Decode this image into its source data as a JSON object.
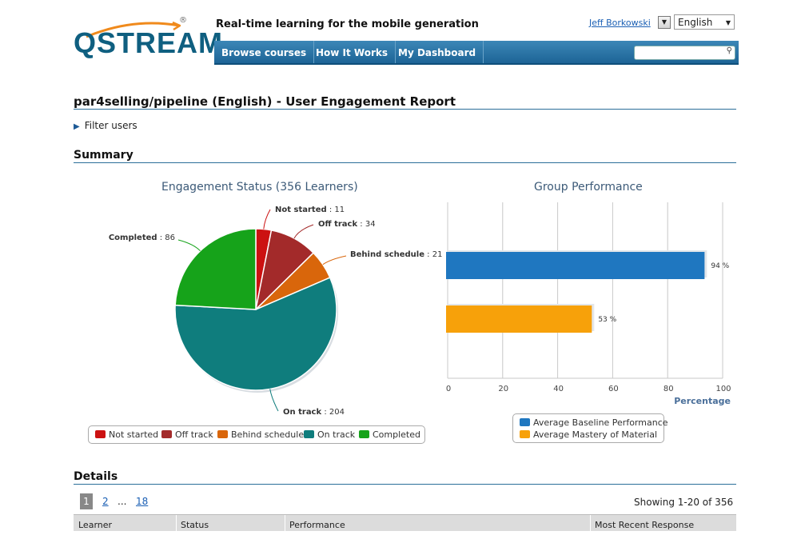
{
  "brand": {
    "logo_text": "QSTREAM",
    "registered": "®",
    "tagline": "Real-time learning for the mobile generation"
  },
  "header": {
    "user_name": "Jeff Borkowski",
    "language": "English"
  },
  "nav": {
    "items": [
      "Browse courses",
      "How It Works",
      "My Dashboard"
    ],
    "search_value": ""
  },
  "page": {
    "title": "par4selling/pipeline (English) - User Engagement Report",
    "filter_label": "Filter users"
  },
  "summary": {
    "heading": "Summary"
  },
  "colors": {
    "not_started": "#cc1111",
    "off_track": "#a32a2a",
    "behind_schedule": "#d9660b",
    "on_track": "#0f7d7d",
    "completed": "#16a31a",
    "baseline": "#1f77c0",
    "mastery": "#f7a10a",
    "accent": "#1d6496"
  },
  "chart_data": [
    {
      "type": "pie",
      "title": "Engagement Status (356 Learners)",
      "slices": [
        {
          "label": "Not started",
          "value": 11
        },
        {
          "label": "Off track",
          "value": 34
        },
        {
          "label": "Behind schedule",
          "value": 21
        },
        {
          "label": "On track",
          "value": 204
        },
        {
          "label": "Completed",
          "value": 86
        }
      ],
      "legend": [
        "Not started",
        "Off track",
        "Behind schedule",
        "On track",
        "Completed"
      ],
      "legend_position": "bottom"
    },
    {
      "type": "bar",
      "orientation": "horizontal",
      "title": "Group Performance",
      "categories": [
        "Average Baseline Performance",
        "Average Mastery of Material"
      ],
      "values": [
        94,
        53
      ],
      "value_suffix": " %",
      "xlabel": "Percentage",
      "xlim": [
        0,
        100
      ],
      "xticks": [
        0,
        20,
        40,
        60,
        80,
        100
      ],
      "grid": true,
      "legend": [
        "Average Baseline Performance",
        "Average Mastery of Material"
      ],
      "legend_position": "bottom"
    }
  ],
  "details": {
    "heading": "Details",
    "pages": [
      "1",
      "2",
      "...",
      "18"
    ],
    "current_page": "1",
    "showing": "Showing 1-20 of 356",
    "columns": [
      "Learner",
      "Status",
      "Performance",
      "Most Recent Response"
    ]
  }
}
